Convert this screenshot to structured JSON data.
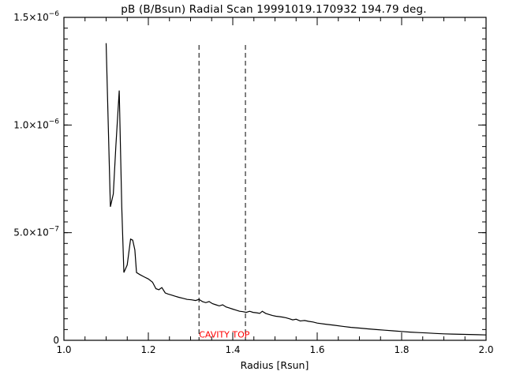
{
  "chart_data": {
    "type": "line",
    "title": "pB (B/Bsun) Radial Scan 19991019.170932 194.79 deg.",
    "xlabel": "Radius [Rsun]",
    "ylabel": "",
    "xlim": [
      1.0,
      2.0
    ],
    "ylim": [
      0,
      1.5e-06
    ],
    "x_ticks": [
      1.0,
      1.2,
      1.4,
      1.6,
      1.8,
      2.0
    ],
    "x_tick_labels": [
      "1.0",
      "1.2",
      "1.4",
      "1.6",
      "1.8",
      "2.0"
    ],
    "y_ticks": [
      0,
      5e-07,
      1e-06,
      1.5e-06
    ],
    "y_tick_labels": [
      {
        "mantissa": "0",
        "exponent": ""
      },
      {
        "mantissa": "5.0×10",
        "exponent": "−7"
      },
      {
        "mantissa": "1.0×10",
        "exponent": "−6"
      },
      {
        "mantissa": "1.5×10",
        "exponent": "−6"
      }
    ],
    "x_minor_step": 0.05,
    "y_minor_step": 5e-08,
    "series": [
      {
        "x": [
          1.1,
          1.11,
          1.117,
          1.123,
          1.131,
          1.137,
          1.142,
          1.15,
          1.158,
          1.163,
          1.168,
          1.172,
          1.18,
          1.19,
          1.2,
          1.21,
          1.218,
          1.225,
          1.232,
          1.24,
          1.247,
          1.255,
          1.263,
          1.272,
          1.282,
          1.292,
          1.302,
          1.312,
          1.32,
          1.328,
          1.336,
          1.344,
          1.352,
          1.36,
          1.368,
          1.376,
          1.384,
          1.392,
          1.4,
          1.408,
          1.416,
          1.424,
          1.432,
          1.44,
          1.448,
          1.456,
          1.464,
          1.47,
          1.478,
          1.486,
          1.494,
          1.502,
          1.51,
          1.518,
          1.526,
          1.534,
          1.542,
          1.55,
          1.56,
          1.57,
          1.58,
          1.59,
          1.6,
          1.62,
          1.64,
          1.66,
          1.68,
          1.7,
          1.72,
          1.74,
          1.76,
          1.78,
          1.8,
          1.82,
          1.84,
          1.86,
          1.88,
          1.9,
          1.92,
          1.94,
          1.96,
          1.98,
          2.0
        ],
        "values": [
          1.38e-06,
          6.2e-07,
          6.8e-07,
          9e-07,
          1.16e-06,
          6.2e-07,
          3.15e-07,
          3.5e-07,
          4.7e-07,
          4.65e-07,
          4.2e-07,
          3.15e-07,
          3.05e-07,
          2.95e-07,
          2.85e-07,
          2.7e-07,
          2.4e-07,
          2.35e-07,
          2.45e-07,
          2.2e-07,
          2.15e-07,
          2.1e-07,
          2.05e-07,
          2e-07,
          1.95e-07,
          1.9e-07,
          1.88e-07,
          1.85e-07,
          1.9e-07,
          1.8e-07,
          1.75e-07,
          1.8e-07,
          1.7e-07,
          1.65e-07,
          1.6e-07,
          1.65e-07,
          1.55e-07,
          1.5e-07,
          1.45e-07,
          1.4e-07,
          1.35e-07,
          1.33e-07,
          1.3e-07,
          1.35e-07,
          1.3e-07,
          1.28e-07,
          1.25e-07,
          1.35e-07,
          1.25e-07,
          1.2e-07,
          1.15e-07,
          1.12e-07,
          1.1e-07,
          1.08e-07,
          1.05e-07,
          1e-07,
          9.5e-08,
          9.8e-08,
          9e-08,
          9.2e-08,
          8.8e-08,
          8.5e-08,
          8e-08,
          7.5e-08,
          7e-08,
          6.5e-08,
          6e-08,
          5.7e-08,
          5.3e-08,
          5e-08,
          4.7e-08,
          4.4e-08,
          4.1e-08,
          3.8e-08,
          3.6e-08,
          3.4e-08,
          3.2e-08,
          3e-08,
          2.9e-08,
          2.8e-08,
          2.7e-08,
          2.6e-08,
          2.5e-08
        ]
      }
    ],
    "vlines": [
      1.32,
      1.43
    ],
    "annotation": {
      "text": "CAVITY TOP",
      "x": 1.32,
      "y": 1.2e-08,
      "color": "#ff0000"
    },
    "line_color": "#000000",
    "grid": false,
    "legend": "none"
  }
}
